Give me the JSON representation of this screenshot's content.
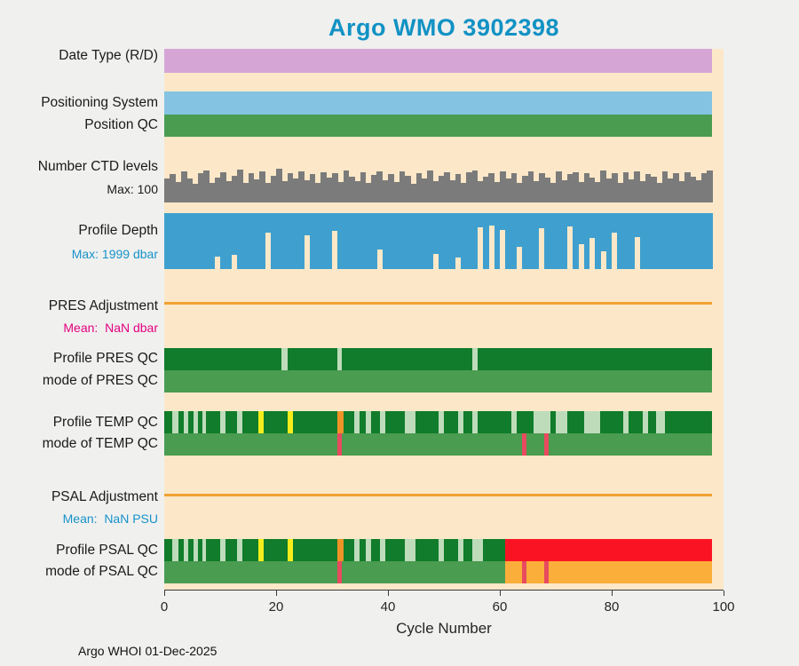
{
  "title": "Argo WMO 3902398",
  "credit": "Argo WHOI 01-Dec-2025",
  "axis": {
    "xlabel": "Cycle Number"
  },
  "labels": {
    "date_type": {
      "text": "Date Type (R/D)"
    },
    "positioning_system": {
      "text": "Positioning System"
    },
    "position_qc": {
      "text": "Position QC"
    },
    "ctd_levels": {
      "text": "Number CTD levels"
    },
    "ctd_max": {
      "text": "Max: 100"
    },
    "profile_depth": {
      "text": "Profile Depth"
    },
    "depth_max": {
      "text": "Max: 1999 dbar"
    },
    "pres_adjustment": {
      "text": "PRES Adjustment"
    },
    "pres_mean": {
      "text": "Mean:  NaN dbar"
    },
    "profile_pres_qc": {
      "text": "Profile PRES QC"
    },
    "mode_pres_qc": {
      "text": "mode of PRES QC"
    },
    "profile_temp_qc": {
      "text": "Profile TEMP QC"
    },
    "mode_temp_qc": {
      "text": "mode of TEMP QC"
    },
    "psal_adjustment": {
      "text": "PSAL Adjustment"
    },
    "psal_mean": {
      "text": "Mean:  NaN PSU"
    },
    "profile_psal_qc": {
      "text": "Profile PSAL QC"
    },
    "mode_psal_qc": {
      "text": "mode of PSAL QC"
    }
  },
  "colors": {
    "plum": "#d5a6d5",
    "light_blue": "#85c3e2",
    "green": "#4a9c50",
    "dark_green": "#117c2b",
    "pale_green": "#bedcba",
    "gray": "#7b7b7b",
    "depth_blue": "#3fa0cf",
    "adjust_orange": "#f0a232",
    "mark_yellow": "#f6ee1c",
    "mark_orange": "#f09326",
    "crimson": "#e84a5f",
    "red": "#fa1423",
    "orange_fill": "#fbae3a",
    "title_teal": "#1292c4",
    "text_blue": "#1793c9",
    "text_magenta": "#e3007f",
    "plot_bg": "#fce8c8"
  },
  "chart_data": {
    "type": "bar",
    "title": "Argo WMO 3902398",
    "xlabel": "Cycle Number",
    "xlim": [
      0,
      100
    ],
    "xticks": [
      0,
      20,
      40,
      60,
      80,
      100
    ],
    "xtick_labels": [
      "0",
      "20",
      "40",
      "60",
      "80",
      "100"
    ],
    "n_cycles": 98,
    "ctd_levels_max": 100,
    "profile_depth_max_dbar": 1999,
    "pres_adjustment_mean": "NaN dbar",
    "psal_adjustment_mean": "NaN PSU",
    "rows": [
      {
        "id": "date_type",
        "label": "Date Type (R/D)",
        "kind": "segments",
        "segments": [
          {
            "from": 0,
            "to": 98,
            "color": "plum"
          }
        ]
      },
      {
        "id": "positioning_system",
        "label": "Positioning System",
        "kind": "segments",
        "segments": [
          {
            "from": 0,
            "to": 98,
            "color": "light_blue"
          }
        ]
      },
      {
        "id": "position_qc",
        "label": "Position QC",
        "kind": "segments",
        "segments": [
          {
            "from": 0,
            "to": 98,
            "color": "green"
          }
        ]
      },
      {
        "id": "ctd_levels",
        "label": "Number CTD levels",
        "kind": "bars",
        "anchor": "bottom",
        "color": "gray",
        "max": 100,
        "values": [
          72,
          85,
          60,
          92,
          70,
          55,
          88,
          95,
          58,
          75,
          90,
          62,
          80,
          98,
          57,
          86,
          68,
          91,
          59,
          78,
          100,
          63,
          88,
          72,
          93,
          66,
          85,
          58,
          90,
          74,
          87,
          61,
          96,
          76,
          64,
          89,
          57,
          82,
          91,
          67,
          84,
          60,
          92,
          78,
          56,
          88,
          70,
          95,
          62,
          80,
          90,
          65,
          85,
          58,
          89,
          94,
          63,
          77,
          88,
          60,
          91,
          70,
          86,
          59,
          80,
          92,
          64,
          87,
          73,
          58,
          93,
          66,
          85,
          90,
          61,
          88,
          75,
          60,
          95,
          70,
          86,
          57,
          89,
          68,
          91,
          62,
          84,
          76,
          59,
          92,
          71,
          88,
          63,
          90,
          77,
          65,
          86,
          94
        ]
      },
      {
        "id": "profile_depth",
        "label": "Profile Depth",
        "kind": "bars",
        "anchor": "top",
        "color": "depth_blue",
        "max": 1999,
        "values": [
          1999,
          1999,
          1999,
          1999,
          1999,
          1999,
          1999,
          1999,
          1999,
          1550,
          1999,
          1999,
          1500,
          1999,
          1999,
          1999,
          1999,
          1999,
          700,
          1999,
          1999,
          1999,
          1999,
          1999,
          1999,
          800,
          1999,
          1999,
          1999,
          1999,
          650,
          1999,
          1999,
          1999,
          1999,
          1999,
          1999,
          1999,
          1300,
          1999,
          1999,
          1999,
          1999,
          1999,
          1999,
          1999,
          1999,
          1999,
          1450,
          1999,
          1999,
          1999,
          1600,
          1999,
          1999,
          1999,
          500,
          1999,
          450,
          1999,
          600,
          1999,
          1999,
          1200,
          1999,
          1999,
          1999,
          550,
          1999,
          1999,
          1999,
          1999,
          480,
          1999,
          1100,
          1999,
          900,
          1999,
          1350,
          1999,
          700,
          1999,
          1999,
          1999,
          850,
          1999,
          1999,
          1999,
          1999,
          1999,
          1999,
          1999,
          1999,
          1999,
          1999,
          1999,
          1999,
          1999
        ]
      },
      {
        "id": "pres_adjustment",
        "label": "PRES Adjustment",
        "kind": "line",
        "color": "adjust_orange",
        "from": 0,
        "to": 98,
        "mean": "NaN dbar"
      },
      {
        "id": "profile_pres_qc",
        "label": "Profile PRES QC",
        "kind": "segments",
        "segments": [
          {
            "from": 0,
            "to": 98,
            "color": "dark_green"
          },
          {
            "from": 21,
            "to": 22,
            "color": "pale_green"
          },
          {
            "from": 31,
            "to": 31.8,
            "color": "pale_green"
          },
          {
            "from": 55,
            "to": 56,
            "color": "pale_green"
          }
        ]
      },
      {
        "id": "mode_pres_qc",
        "label": "mode of PRES QC",
        "kind": "segments",
        "segments": [
          {
            "from": 0,
            "to": 98,
            "color": "green"
          }
        ]
      },
      {
        "id": "profile_temp_qc",
        "label": "Profile TEMP QC",
        "kind": "segments",
        "segments": [
          {
            "from": 0,
            "to": 98,
            "color": "dark_green"
          },
          {
            "from": 1.5,
            "to": 2.5,
            "color": "pale_green"
          },
          {
            "from": 3.5,
            "to": 4.3,
            "color": "pale_green"
          },
          {
            "from": 5.2,
            "to": 6,
            "color": "pale_green"
          },
          {
            "from": 6.8,
            "to": 7.5,
            "color": "pale_green"
          },
          {
            "from": 10,
            "to": 11,
            "color": "pale_green"
          },
          {
            "from": 13,
            "to": 14,
            "color": "pale_green"
          },
          {
            "from": 16.8,
            "to": 17.8,
            "color": "mark_yellow"
          },
          {
            "from": 22,
            "to": 23,
            "color": "mark_yellow"
          },
          {
            "from": 31,
            "to": 32,
            "color": "mark_orange"
          },
          {
            "from": 34,
            "to": 35,
            "color": "pale_green"
          },
          {
            "from": 36,
            "to": 37,
            "color": "pale_green"
          },
          {
            "from": 38.5,
            "to": 39.5,
            "color": "pale_green"
          },
          {
            "from": 43,
            "to": 45,
            "color": "pale_green"
          },
          {
            "from": 49,
            "to": 50,
            "color": "pale_green"
          },
          {
            "from": 52.5,
            "to": 53.5,
            "color": "pale_green"
          },
          {
            "from": 55,
            "to": 56,
            "color": "pale_green"
          },
          {
            "from": 62,
            "to": 63,
            "color": "pale_green"
          },
          {
            "from": 66,
            "to": 69,
            "color": "pale_green"
          },
          {
            "from": 70,
            "to": 72,
            "color": "pale_green"
          },
          {
            "from": 75,
            "to": 78,
            "color": "pale_green"
          },
          {
            "from": 82,
            "to": 83,
            "color": "pale_green"
          },
          {
            "from": 85.5,
            "to": 86.5,
            "color": "pale_green"
          },
          {
            "from": 88,
            "to": 89.5,
            "color": "pale_green"
          }
        ]
      },
      {
        "id": "mode_temp_qc",
        "label": "mode of TEMP QC",
        "kind": "segments",
        "segments": [
          {
            "from": 0,
            "to": 98,
            "color": "green"
          },
          {
            "from": 31,
            "to": 31.8,
            "color": "crimson"
          },
          {
            "from": 64,
            "to": 64.8,
            "color": "crimson"
          },
          {
            "from": 68,
            "to": 68.8,
            "color": "crimson"
          }
        ]
      },
      {
        "id": "psal_adjustment",
        "label": "PSAL Adjustment",
        "kind": "line",
        "color": "adjust_orange",
        "from": 0,
        "to": 98,
        "mean": "NaN PSU"
      },
      {
        "id": "profile_psal_qc",
        "label": "Profile PSAL QC",
        "kind": "segments",
        "segments": [
          {
            "from": 0,
            "to": 61,
            "color": "dark_green"
          },
          {
            "from": 1.5,
            "to": 2.5,
            "color": "pale_green"
          },
          {
            "from": 3.5,
            "to": 4.3,
            "color": "pale_green"
          },
          {
            "from": 5.2,
            "to": 6,
            "color": "pale_green"
          },
          {
            "from": 6.8,
            "to": 7.5,
            "color": "pale_green"
          },
          {
            "from": 10,
            "to": 11,
            "color": "pale_green"
          },
          {
            "from": 13,
            "to": 14,
            "color": "pale_green"
          },
          {
            "from": 16.8,
            "to": 17.8,
            "color": "mark_yellow"
          },
          {
            "from": 22,
            "to": 23,
            "color": "mark_yellow"
          },
          {
            "from": 31,
            "to": 32,
            "color": "mark_orange"
          },
          {
            "from": 34,
            "to": 35,
            "color": "pale_green"
          },
          {
            "from": 36,
            "to": 37,
            "color": "pale_green"
          },
          {
            "from": 38.5,
            "to": 39.5,
            "color": "pale_green"
          },
          {
            "from": 43,
            "to": 45,
            "color": "pale_green"
          },
          {
            "from": 49,
            "to": 50,
            "color": "pale_green"
          },
          {
            "from": 52.5,
            "to": 53.5,
            "color": "pale_green"
          },
          {
            "from": 55,
            "to": 57,
            "color": "pale_green"
          },
          {
            "from": 61,
            "to": 98,
            "color": "red"
          }
        ]
      },
      {
        "id": "mode_psal_qc",
        "label": "mode of PSAL QC",
        "kind": "segments",
        "segments": [
          {
            "from": 0,
            "to": 61,
            "color": "green"
          },
          {
            "from": 61,
            "to": 98,
            "color": "orange_fill"
          },
          {
            "from": 31,
            "to": 31.8,
            "color": "crimson"
          },
          {
            "from": 64,
            "to": 64.8,
            "color": "crimson"
          },
          {
            "from": 68,
            "to": 68.8,
            "color": "crimson"
          }
        ]
      }
    ]
  }
}
